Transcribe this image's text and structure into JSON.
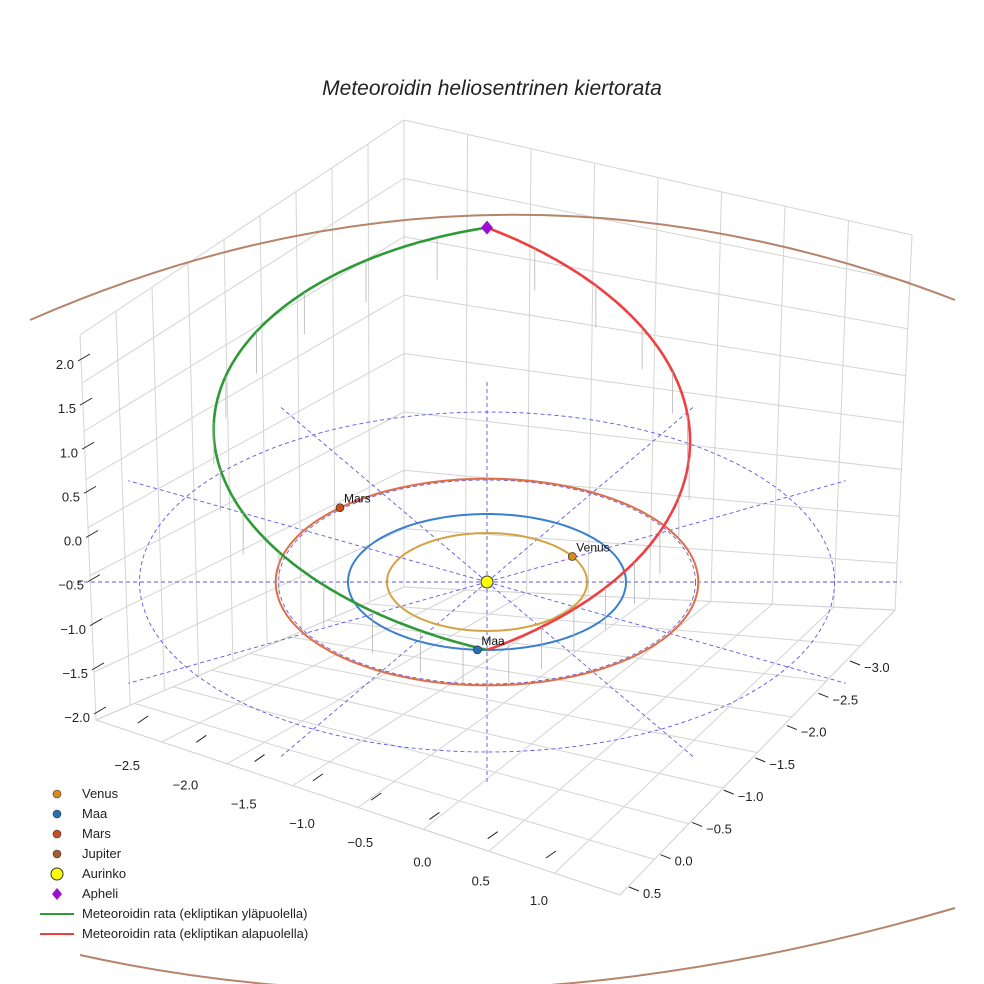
{
  "chart_data": {
    "type": "scatter",
    "projection": "3d",
    "title": "Meteoroidin heliosentrinen kiertorata",
    "xlabel": "",
    "ylabel": "",
    "zlabel": "",
    "xlim": [
      -2.8,
      1.3
    ],
    "ylim": [
      -3.2,
      0.6
    ],
    "zlim": [
      -2.2,
      2.2
    ],
    "x_ticks": [
      "−2.5",
      "−2.0",
      "−1.5",
      "−1.0",
      "−0.5",
      "0.0",
      "0.5",
      "1.0"
    ],
    "y_ticks": [
      "−3.0",
      "−2.5",
      "−2.0",
      "−1.5",
      "−1.0",
      "−0.5",
      "0.0",
      "0.5"
    ],
    "z_ticks": [
      "2.0",
      "1.5",
      "1.0",
      "0.5",
      "0.0",
      "−0.5",
      "−1.0",
      "−1.5",
      "−2.0"
    ],
    "grid": true,
    "legend_position": "bottom-left",
    "orbits": [
      {
        "name": "Venus",
        "radius_au": 0.72,
        "color": "#d4a243"
      },
      {
        "name": "Maa",
        "radius_au": 1.0,
        "color": "#3a7fd0"
      },
      {
        "name": "Mars",
        "radius_au": 1.52,
        "color": "#e06d45"
      },
      {
        "name": "Jupiter",
        "radius_au": 5.2,
        "color": "#b5846a"
      }
    ],
    "reference_circles_au": [
      1.5,
      2.5
    ],
    "meteoroid_orbit": {
      "perihelion_au": 1.0,
      "aphelion_au": 2.3,
      "above_ecliptic_color": "#2e9a36",
      "below_ecliptic_color": "#ee4040"
    },
    "points": [
      {
        "name": "Venus",
        "label": "Venus",
        "color": "#d98a1e"
      },
      {
        "name": "Maa",
        "label": "Maa",
        "color": "#2c6fb5"
      },
      {
        "name": "Mars",
        "label": "Mars",
        "color": "#c8501e"
      },
      {
        "name": "Aurinko",
        "label": "",
        "color": "#ffff00"
      },
      {
        "name": "Apheli",
        "label": "",
        "color": "#9b10d0"
      }
    ],
    "legend": [
      {
        "label": "Venus",
        "marker": "dot",
        "color": "#d98a1e"
      },
      {
        "label": "Maa",
        "marker": "dot",
        "color": "#2c6fb5"
      },
      {
        "label": "Mars",
        "marker": "dot",
        "color": "#c8501e"
      },
      {
        "label": "Jupiter",
        "marker": "dot",
        "color": "#a75a35"
      },
      {
        "label": "Aurinko",
        "marker": "bigdot",
        "color": "#ffff00"
      },
      {
        "label": "Apheli",
        "marker": "diamond",
        "color": "#9b10d0"
      },
      {
        "label": "Meteoroidin rata (ekliptikan yläpuolella)",
        "marker": "line",
        "color": "#2e9a36"
      },
      {
        "label": "Meteoroidin rata (ekliptikan alapuolella)",
        "marker": "line",
        "color": "#ee4040"
      }
    ]
  }
}
